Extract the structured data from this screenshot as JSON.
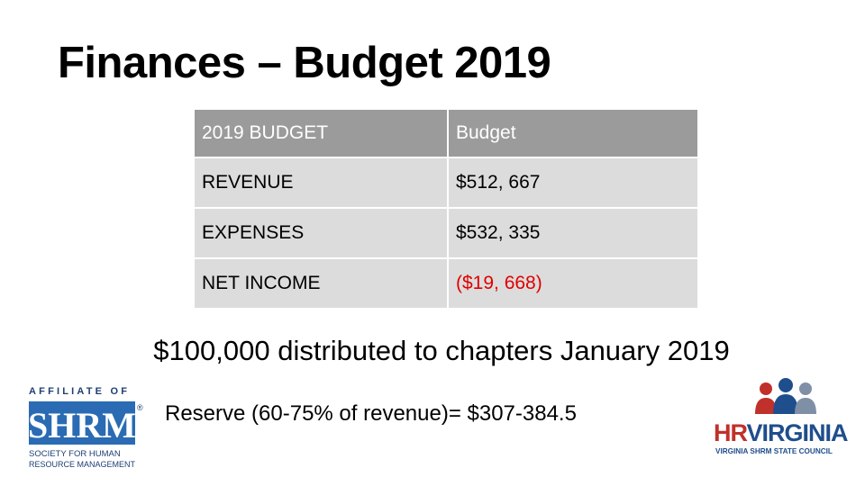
{
  "title": "Finances – Budget 2019",
  "table": {
    "header": [
      "2019 BUDGET",
      "Budget"
    ],
    "rows": [
      [
        "REVENUE",
        "$512, 667"
      ],
      [
        "EXPENSES",
        "$532, 335"
      ],
      [
        "NET INCOME",
        "($19, 668)"
      ]
    ]
  },
  "notes": [
    "$100,000 distributed to chapters January 2019",
    "Reserve (60-75% of revenue)= $307-384.5"
  ],
  "shrm_logo": {
    "top": "AFFILIATE OF",
    "name": "SHRM",
    "mark": "®",
    "line1": "SOCIETY FOR HUMAN",
    "line2": "RESOURCE MANAGEMENT"
  },
  "hrvirginia_logo": {
    "hr": "HR",
    "virginia": "VIRGINIA",
    "tagline": "VIRGINIA SHRM STATE COUNCIL"
  }
}
